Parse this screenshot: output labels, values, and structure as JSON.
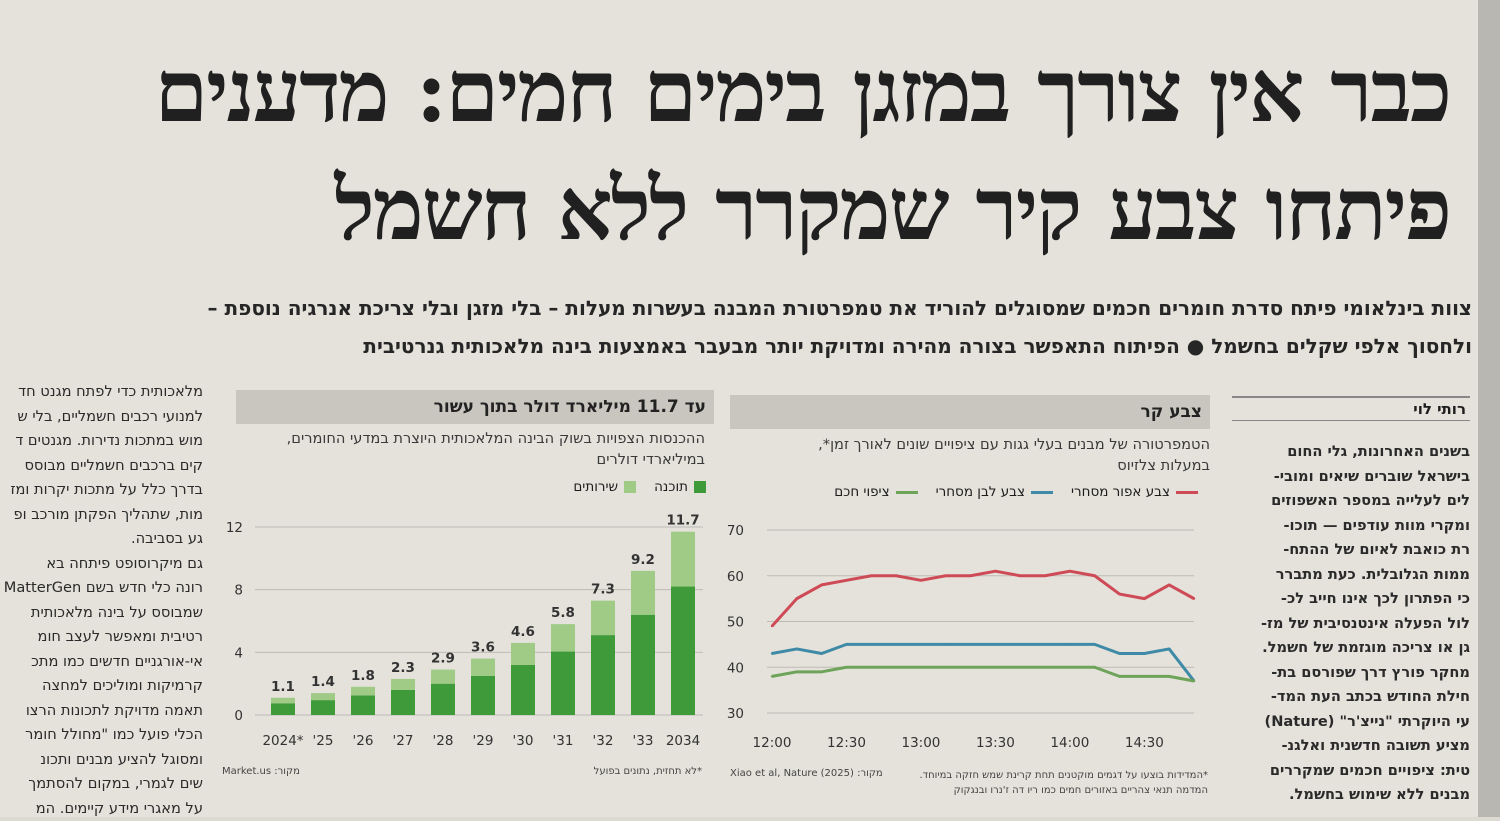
{
  "headline": {
    "line1": "כבר אין צורך במזגן בימים חמים: מדענים",
    "line2": "פיתחו צבע קיר שמקרר ללא חשמל"
  },
  "subheadline": {
    "line1": "צוות בינלאומי פיתח סדרת חומרים חכמים שמסוגלים להוריד את טמפרטורת המבנה בעשרות מעלות – בלי מזגן ובלי צריכת אנרגיה נוספת –",
    "line2": "ולחסוך אלפי שקלים בחשמל ● הפיתוח התאפשר בצורה מהירה ומדויקת יותר מבעבר באמצעות בינה מלאכותית גנרטיבית"
  },
  "byline": "רותי לוי",
  "right_column": [
    "בשנים האחרונות, גלי החום",
    "בישראל שוברים שיאים ומובי-",
    "לים לעלייה במספר האשפוזים",
    "ומקרי מוות עודפים — תוכו-",
    "רת כואבת לאיום של ההתח-",
    "ממות הגלובלית. כעת מתברר",
    "כי הפתרון לכך אינו חייב לכ-",
    "לול הפעלה אינטנסיבית של מז-",
    "גן או צריכה מוגזמת של חשמל.",
    "מחקר פורץ דרך שפורסם בת-",
    "חילת החודש בכתב העת המד-",
    "עי היוקרתי \"נייצ'ר\" (Nature)",
    "מציע תשובה חדשנית ואלגנ-",
    "טית: ציפויים חכמים שמקררים",
    "מבנים ללא שימוש בחשמל."
  ],
  "left_column": [
    "מלאכותית כדי לפתח מגנט חד",
    "למנועי רכבים חשמליים, בלי ש",
    "מוש במתכות נדירות. מגנטים ד",
    "קים ברכבים חשמליים מבוסס",
    "בדרך כלל על מתכות יקרות ומז",
    "מות, שתהליך הפקתן מורכב ופ",
    "גע בסביבה.",
    "גם מיקרוסופט פיתחה בא",
    "רונה כלי חדש בשם MatterGen",
    "שמבוסס על בינה מלאכותית",
    "רטיבית ומאפשר לעצב חומ",
    "אי-אורגניים חדשים כמו מתכ",
    "קרמיקות ומוליכים למחצה",
    "תאמה מדויקת לתכונות הרצו",
    "הכלי פועל כמו \"מחולל חומר",
    "ומסוגל להציע מבנים ותכונ",
    "שים לגמרי, במקום להסתמך",
    "על מאגרי מידע קיימים. המ"
  ],
  "panel_temp": {
    "title": "צבע קר",
    "desc_line1": "הטמפרטורה של מבנים בעלי גגות עם ציפויים שונים לאורך זמן*,",
    "desc_line2": "במעלות צלזיוס",
    "legend": [
      "צבע אפור מסחרי",
      "צבע לבן מסחרי",
      "ציפוי חכם"
    ],
    "footnote_line1": "*המדידות בוצעו על דגמים מוקטנים תחת קרינת שמש חזקה במיוחד.",
    "footnote_line2": "המדמה תנאי צהריים באזורים חמים כמו ריו דה ז'נרו ובנגקוק",
    "source": "מקור: Xiao et al, Nature (2025)"
  },
  "panel_ai": {
    "title": "עד 11.7 מיליארד דולר בתוך עשור",
    "desc_line1": "ההכנסות הצפויות בשוק הבינה המלאכותית היוצרת במדעי החומרים,",
    "desc_line2": "במיליארדי דולרים",
    "legend": [
      "תוכנה",
      "שירותים"
    ],
    "footnote": "*לא תחזית, נתונים בפועל",
    "source": "מקור: Market.us"
  },
  "colors": {
    "gray_paint": "#cf4a57",
    "white_paint": "#3f8aa6",
    "smart_coating": "#6ea35a",
    "software": "#3f9a3a",
    "services": "#9fcb86"
  },
  "chart_data": [
    {
      "type": "line",
      "title": "צבע קר",
      "ylabel": "במעלות צלזיוס",
      "x": [
        "12:00",
        "12:10",
        "12:20",
        "12:30",
        "12:40",
        "12:50",
        "13:00",
        "13:10",
        "13:20",
        "13:30",
        "13:40",
        "13:50",
        "14:00",
        "14:10",
        "14:20",
        "14:30",
        "14:40",
        "14:45"
      ],
      "x_ticks": [
        "12:00",
        "12:30",
        "13:00",
        "13:30",
        "14:00",
        "14:30"
      ],
      "ylim": [
        30,
        70
      ],
      "y_ticks": [
        30,
        40,
        50,
        60,
        70
      ],
      "grid": "horizontal",
      "series": [
        {
          "name": "צבע אפור מסחרי",
          "values": [
            49,
            55,
            58,
            59,
            60,
            60,
            59,
            60,
            60,
            61,
            60,
            60,
            61,
            60,
            56,
            55,
            58,
            55
          ]
        },
        {
          "name": "צבע לבן מסחרי",
          "values": [
            43,
            44,
            43,
            45,
            45,
            45,
            45,
            45,
            45,
            45,
            45,
            45,
            45,
            45,
            43,
            43,
            44,
            37
          ]
        },
        {
          "name": "ציפוי חכם",
          "values": [
            38,
            39,
            39,
            40,
            40,
            40,
            40,
            40,
            40,
            40,
            40,
            40,
            40,
            40,
            38,
            38,
            38,
            37
          ]
        }
      ]
    },
    {
      "type": "bar",
      "stacked": true,
      "title": "עד 11.7 מיליארד דולר בתוך עשור",
      "categories": [
        "2024*",
        "'25",
        "'26",
        "'27",
        "'28",
        "'29",
        "'30",
        "'31",
        "'32",
        "'33",
        "2034"
      ],
      "totals": [
        1.1,
        1.4,
        1.8,
        2.3,
        2.9,
        3.6,
        4.6,
        5.8,
        7.3,
        9.2,
        11.7
      ],
      "series": [
        {
          "name": "תוכנה",
          "values": [
            0.75,
            0.95,
            1.25,
            1.6,
            2.0,
            2.5,
            3.2,
            4.05,
            5.1,
            6.4,
            8.2
          ]
        },
        {
          "name": "שירותים",
          "values": [
            0.35,
            0.45,
            0.55,
            0.7,
            0.9,
            1.1,
            1.4,
            1.75,
            2.2,
            2.8,
            3.5
          ]
        }
      ],
      "ylim": [
        0,
        12
      ],
      "y_ticks": [
        0,
        4,
        8,
        12
      ],
      "grid": "horizontal"
    }
  ]
}
